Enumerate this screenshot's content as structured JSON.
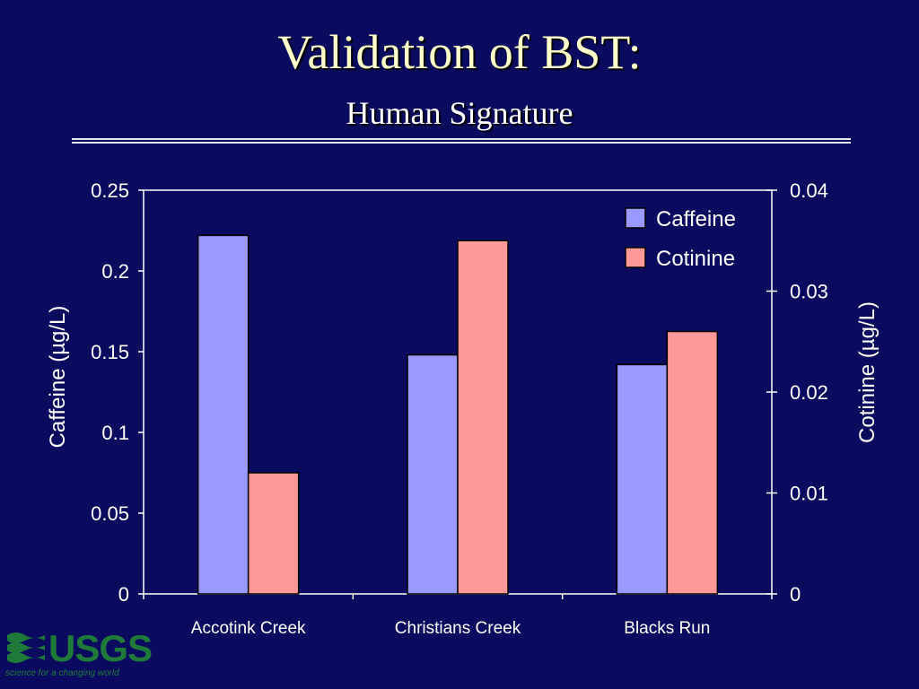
{
  "slide": {
    "title": "Validation of BST:",
    "subtitle": "Human Signature"
  },
  "logo": {
    "word": "USGS",
    "tagline": "science for a changing world",
    "color": "#1f7a3a"
  },
  "colors": {
    "background": "#0a0a5e",
    "title": "#ffffcc",
    "text": "#ffffff",
    "caffeine": "#9999ff",
    "cotinine": "#ff9999"
  },
  "chart_data": {
    "type": "bar",
    "title": "",
    "categories": [
      "Accotink Creek",
      "Christians Creek",
      "Blacks Run"
    ],
    "series": [
      {
        "name": "Caffeine",
        "axis": "left",
        "color": "#9999ff",
        "values": [
          0.222,
          0.148,
          0.142
        ]
      },
      {
        "name": "Cotinine",
        "axis": "right",
        "color": "#ff9999",
        "values": [
          0.012,
          0.035,
          0.026
        ]
      }
    ],
    "y_left": {
      "label": "Caffeine (µg/L)",
      "ylim": [
        0,
        0.25
      ],
      "ticks": [
        "0",
        "0.05",
        "0.1",
        "0.15",
        "0.2",
        "0.25"
      ]
    },
    "y_right": {
      "label": "Cotinine (µg/L)",
      "ylim": [
        0,
        0.04
      ],
      "ticks": [
        "0",
        "0.01",
        "0.02",
        "0.03",
        "0.04"
      ]
    },
    "grid": false,
    "legend": "top-right"
  }
}
